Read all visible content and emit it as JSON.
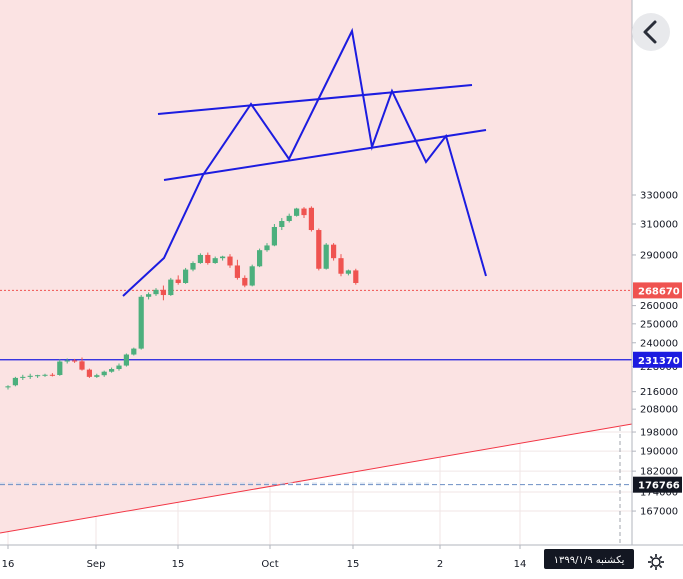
{
  "date_badge": "یکشنبه ۱۳۹۹/۱/۹",
  "icons": {
    "back": "chevron-left-icon",
    "settings": "gear-icon"
  },
  "colors": {
    "up": "#4caf7d",
    "down": "#ef5350",
    "pattern_lines": "#1c1ce0",
    "last_price": "#ef5350",
    "support": "#1c1ce0",
    "trend": "#f23645",
    "dashed": "#6b8fc4",
    "zone_fill": "#fbe3e3"
  },
  "chart_data": {
    "type": "candlestick",
    "y_scale": "log",
    "ylim": [
      163000,
      333000
    ],
    "y_ticks": [
      167000,
      174000,
      182000,
      190000,
      198000,
      208000,
      216000,
      228000,
      240000,
      250000,
      260000,
      290000,
      310000,
      330000
    ],
    "x_ticks": [
      "16",
      "Sep",
      "15",
      "Oct",
      "15",
      "2",
      "14"
    ],
    "price_labels": [
      {
        "name": "last-price",
        "value": 268670,
        "label": "268670",
        "kind": "dotted"
      },
      {
        "name": "support-line",
        "value": 231370,
        "label": "231370",
        "kind": "solid"
      },
      {
        "name": "dashed-level",
        "value": 176766,
        "label": "176766",
        "kind": "dashed"
      }
    ],
    "candles": [
      [
        0,
        218000,
        219000,
        217000,
        218500
      ],
      [
        1,
        219000,
        223000,
        218500,
        222500
      ],
      [
        2,
        222500,
        224000,
        221500,
        223000
      ],
      [
        3,
        223000,
        224500,
        222000,
        223500
      ],
      [
        4,
        223500,
        224000,
        222500,
        223800
      ],
      [
        5,
        223800,
        224500,
        223000,
        224000
      ],
      [
        6,
        224000,
        224800,
        223200,
        223900
      ],
      [
        7,
        223900,
        231500,
        223500,
        230500
      ],
      [
        8,
        230500,
        232000,
        229500,
        231000
      ],
      [
        9,
        231000,
        231800,
        229800,
        230600
      ],
      [
        10,
        230600,
        232500,
        226000,
        226500
      ],
      [
        11,
        226500,
        227000,
        222500,
        223000
      ],
      [
        12,
        223000,
        224500,
        222500,
        223800
      ],
      [
        13,
        223800,
        226000,
        223000,
        225500
      ],
      [
        14,
        225500,
        227500,
        225000,
        226800
      ],
      [
        15,
        226800,
        229500,
        226000,
        228500
      ],
      [
        16,
        228500,
        234500,
        228000,
        234000
      ],
      [
        17,
        234000,
        237500,
        233500,
        237000
      ],
      [
        18,
        237000,
        266000,
        236500,
        265000
      ],
      [
        19,
        265000,
        267500,
        263500,
        266500
      ],
      [
        20,
        266500,
        270000,
        265500,
        269000
      ],
      [
        21,
        269000,
        271500,
        263000,
        266000
      ],
      [
        22,
        266000,
        276000,
        265500,
        275000
      ],
      [
        23,
        275000,
        277500,
        272000,
        273000
      ],
      [
        24,
        273000,
        282000,
        272500,
        281000
      ],
      [
        25,
        281000,
        286000,
        280000,
        285000
      ],
      [
        26,
        285000,
        291000,
        284500,
        290000
      ],
      [
        27,
        290000,
        291500,
        284000,
        285000
      ],
      [
        28,
        285000,
        289000,
        284500,
        288000
      ],
      [
        29,
        288000,
        289500,
        286500,
        289000
      ],
      [
        30,
        289000,
        290500,
        282000,
        283500
      ],
      [
        31,
        283500,
        287000,
        275000,
        276000
      ],
      [
        32,
        276000,
        277500,
        270500,
        271500
      ],
      [
        33,
        271500,
        284000,
        271000,
        283000
      ],
      [
        34,
        283000,
        294000,
        282500,
        293000
      ],
      [
        35,
        293000,
        297500,
        292000,
        296000
      ],
      [
        36,
        296000,
        310000,
        295500,
        308000
      ],
      [
        37,
        308000,
        314000,
        306000,
        312000
      ],
      [
        38,
        312000,
        317000,
        311000,
        315500
      ],
      [
        39,
        315500,
        321000,
        315000,
        320500
      ],
      [
        40,
        320500,
        321500,
        314000,
        316000
      ],
      [
        41,
        321000,
        322000,
        305000,
        306000
      ],
      [
        42,
        306000,
        307000,
        280500,
        281500
      ],
      [
        43,
        281500,
        297500,
        281000,
        296500
      ],
      [
        44,
        296500,
        297500,
        286500,
        288000
      ],
      [
        45,
        288000,
        290500,
        277000,
        278500
      ],
      [
        46,
        278500,
        281000,
        277500,
        280500
      ],
      [
        47,
        280500,
        281500,
        272000,
        273000
      ]
    ]
  }
}
